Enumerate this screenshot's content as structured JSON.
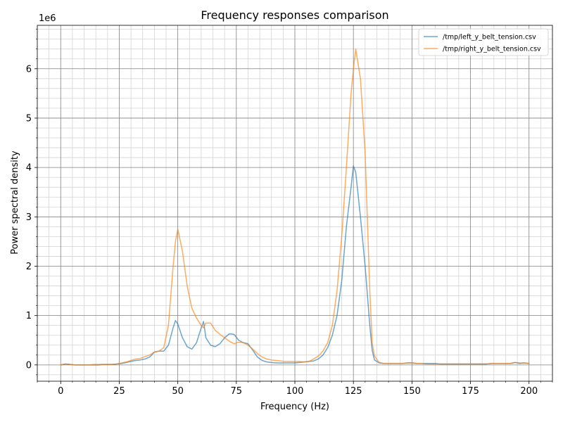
{
  "chart_data": {
    "type": "line",
    "title": "Frequency responses comparison",
    "xlabel": "Frequency (Hz)",
    "ylabel": "Power spectral density",
    "y_offset_label": "1e6",
    "xlim": [
      -10,
      210
    ],
    "ylim": [
      -0.33,
      6.88
    ],
    "x_ticks": [
      0,
      25,
      50,
      75,
      100,
      125,
      150,
      175,
      200
    ],
    "y_ticks": [
      0,
      1,
      2,
      3,
      4,
      5,
      6
    ],
    "x_minor_step": 5,
    "y_minor_step": 0.2,
    "grid": true,
    "legend_position": "top-right",
    "series": [
      {
        "name": "/tmp/left_y_belt_tension.csv",
        "color": "#1f77b4",
        "x": [
          0,
          2,
          4,
          6,
          8,
          10,
          12,
          14,
          16,
          18,
          20,
          22,
          24,
          26,
          28,
          30,
          32,
          34,
          36,
          38,
          40,
          42,
          44,
          46,
          48,
          49,
          50,
          52,
          54,
          56,
          58,
          60,
          61,
          62,
          64,
          66,
          68,
          70,
          72,
          74,
          76,
          78,
          80,
          82,
          84,
          86,
          88,
          90,
          92,
          94,
          96,
          98,
          100,
          102,
          104,
          106,
          108,
          110,
          112,
          114,
          116,
          118,
          120,
          122,
          124,
          125,
          126,
          128,
          130,
          132,
          133,
          134,
          136,
          138,
          140,
          142,
          144,
          146,
          148,
          150,
          152,
          154,
          156,
          158,
          160,
          162,
          164,
          166,
          168,
          170,
          172,
          174,
          176,
          178,
          180,
          182,
          184,
          186,
          188,
          190,
          192,
          194,
          196,
          198,
          200
        ],
        "y": [
          0.0,
          0.02,
          0.01,
          0.0,
          0.0,
          0.0,
          0.0,
          0.0,
          0.0,
          0.01,
          0.01,
          0.01,
          0.02,
          0.03,
          0.05,
          0.07,
          0.09,
          0.1,
          0.12,
          0.16,
          0.26,
          0.28,
          0.28,
          0.4,
          0.75,
          0.9,
          0.83,
          0.55,
          0.37,
          0.32,
          0.45,
          0.75,
          0.88,
          0.55,
          0.4,
          0.37,
          0.43,
          0.55,
          0.63,
          0.62,
          0.5,
          0.45,
          0.43,
          0.3,
          0.16,
          0.09,
          0.06,
          0.05,
          0.04,
          0.04,
          0.04,
          0.04,
          0.04,
          0.05,
          0.06,
          0.07,
          0.08,
          0.12,
          0.2,
          0.35,
          0.6,
          1.0,
          1.7,
          2.8,
          3.6,
          4.03,
          3.9,
          3.0,
          2.0,
          0.8,
          0.3,
          0.1,
          0.04,
          0.03,
          0.03,
          0.03,
          0.03,
          0.03,
          0.04,
          0.04,
          0.03,
          0.03,
          0.03,
          0.03,
          0.03,
          0.02,
          0.02,
          0.02,
          0.02,
          0.02,
          0.02,
          0.02,
          0.02,
          0.02,
          0.02,
          0.02,
          0.03,
          0.03,
          0.03,
          0.03,
          0.03,
          0.05,
          0.03,
          0.04,
          0.03
        ]
      },
      {
        "name": "/tmp/right_y_belt_tension.csv",
        "color": "#ff7f0e",
        "x": [
          0,
          2,
          4,
          6,
          8,
          10,
          12,
          14,
          16,
          18,
          20,
          22,
          24,
          26,
          28,
          30,
          32,
          34,
          36,
          38,
          40,
          42,
          44,
          46,
          48,
          49,
          50,
          52,
          54,
          56,
          58,
          60,
          61,
          62,
          64,
          66,
          68,
          70,
          72,
          74,
          76,
          78,
          80,
          82,
          84,
          86,
          88,
          90,
          92,
          94,
          96,
          98,
          100,
          102,
          104,
          106,
          108,
          110,
          112,
          114,
          116,
          118,
          120,
          122,
          124,
          125,
          126,
          128,
          130,
          132,
          133,
          134,
          136,
          138,
          140,
          142,
          144,
          146,
          148,
          150,
          152,
          154,
          156,
          158,
          160,
          162,
          164,
          166,
          168,
          170,
          172,
          174,
          176,
          178,
          180,
          182,
          184,
          186,
          188,
          190,
          192,
          194,
          196,
          198,
          200
        ],
        "y": [
          0.0,
          0.02,
          0.01,
          0.0,
          0.0,
          0.0,
          0.0,
          0.01,
          0.01,
          0.01,
          0.01,
          0.01,
          0.02,
          0.04,
          0.06,
          0.09,
          0.12,
          0.13,
          0.17,
          0.2,
          0.26,
          0.28,
          0.35,
          0.8,
          2.0,
          2.5,
          2.75,
          2.3,
          1.6,
          1.15,
          0.95,
          0.8,
          0.75,
          0.85,
          0.85,
          0.7,
          0.62,
          0.55,
          0.48,
          0.43,
          0.46,
          0.45,
          0.4,
          0.32,
          0.23,
          0.16,
          0.12,
          0.1,
          0.09,
          0.08,
          0.07,
          0.07,
          0.07,
          0.07,
          0.06,
          0.07,
          0.12,
          0.18,
          0.28,
          0.45,
          0.8,
          1.5,
          2.6,
          4.0,
          5.5,
          6.0,
          6.4,
          5.8,
          4.3,
          1.5,
          0.45,
          0.18,
          0.05,
          0.03,
          0.03,
          0.03,
          0.03,
          0.03,
          0.04,
          0.04,
          0.03,
          0.03,
          0.02,
          0.02,
          0.02,
          0.02,
          0.02,
          0.02,
          0.02,
          0.02,
          0.02,
          0.02,
          0.02,
          0.02,
          0.02,
          0.02,
          0.03,
          0.03,
          0.03,
          0.03,
          0.03,
          0.05,
          0.04,
          0.04,
          0.03
        ]
      }
    ]
  }
}
